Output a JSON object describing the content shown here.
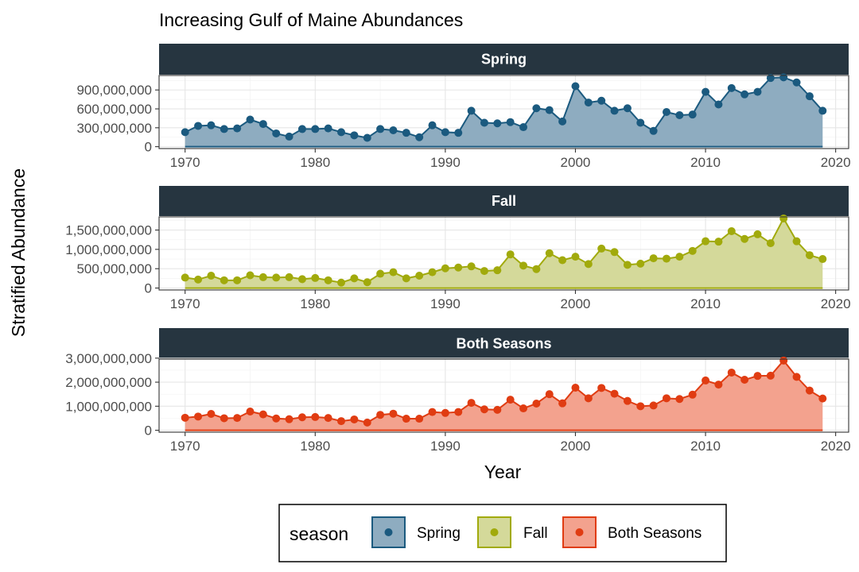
{
  "chart_data": {
    "type": "area",
    "title": "Increasing Gulf of Maine Abundances",
    "xlabel": "Year",
    "ylabel": "Stratified Abundance",
    "x_ticks": [
      1970,
      1980,
      1990,
      2000,
      2010,
      2020
    ],
    "xlim": [
      1968,
      2021
    ],
    "grid": true,
    "legend": {
      "title": "season",
      "placement": "bottom",
      "entries": [
        "Spring",
        "Fall",
        "Both Seasons"
      ]
    },
    "x": [
      1970,
      1971,
      1972,
      1973,
      1974,
      1975,
      1976,
      1977,
      1978,
      1979,
      1980,
      1981,
      1982,
      1983,
      1984,
      1985,
      1986,
      1987,
      1988,
      1989,
      1990,
      1991,
      1992,
      1993,
      1994,
      1995,
      1996,
      1997,
      1998,
      1999,
      2000,
      2001,
      2002,
      2003,
      2004,
      2005,
      2006,
      2007,
      2008,
      2009,
      2010,
      2011,
      2012,
      2013,
      2014,
      2015,
      2016,
      2017,
      2018,
      2019
    ],
    "panels": [
      {
        "name": "Spring",
        "color": "#1B5A7F",
        "fill": "#8EACC0",
        "ylim": [
          -30000000,
          1130000000
        ],
        "y_ticks": [
          0,
          300000000,
          600000000,
          900000000
        ],
        "y_tick_labels": [
          "0",
          "300,000,000",
          "600,000,000",
          "900,000,000"
        ],
        "values": [
          230000000,
          330000000,
          340000000,
          280000000,
          290000000,
          430000000,
          360000000,
          210000000,
          160000000,
          280000000,
          280000000,
          290000000,
          230000000,
          180000000,
          140000000,
          280000000,
          260000000,
          220000000,
          150000000,
          340000000,
          230000000,
          220000000,
          570000000,
          380000000,
          370000000,
          390000000,
          310000000,
          610000000,
          580000000,
          400000000,
          960000000,
          700000000,
          730000000,
          570000000,
          610000000,
          380000000,
          250000000,
          550000000,
          500000000,
          510000000,
          870000000,
          670000000,
          930000000,
          830000000,
          870000000,
          1090000000,
          1100000000,
          1020000000,
          800000000,
          570000000
        ]
      },
      {
        "name": "Fall",
        "color": "#A1AA0C",
        "fill": "#D4D99A",
        "ylim": [
          -50000000,
          1840000000
        ],
        "y_ticks": [
          0,
          500000000,
          1000000000,
          1500000000
        ],
        "y_tick_labels": [
          "0",
          "500,000,000",
          "1,000,000,000",
          "1,500,000,000"
        ],
        "values": [
          270000000,
          220000000,
          320000000,
          200000000,
          200000000,
          330000000,
          280000000,
          270000000,
          280000000,
          230000000,
          260000000,
          200000000,
          140000000,
          250000000,
          150000000,
          370000000,
          410000000,
          250000000,
          320000000,
          410000000,
          510000000,
          530000000,
          560000000,
          440000000,
          460000000,
          870000000,
          580000000,
          490000000,
          900000000,
          720000000,
          810000000,
          620000000,
          1020000000,
          930000000,
          600000000,
          630000000,
          770000000,
          760000000,
          810000000,
          960000000,
          1210000000,
          1200000000,
          1470000000,
          1270000000,
          1390000000,
          1160000000,
          1800000000,
          1210000000,
          850000000,
          750000000
        ]
      },
      {
        "name": "Both Seasons",
        "color": "#E03C12",
        "fill": "#F3A28E",
        "ylim": [
          -80000000,
          2960000000
        ],
        "y_ticks": [
          0,
          1000000000,
          2000000000,
          3000000000
        ],
        "y_tick_labels": [
          "0",
          "1,000,000,000",
          "2,000,000,000",
          "3,000,000,000"
        ],
        "values": [
          520000000,
          570000000,
          680000000,
          500000000,
          510000000,
          780000000,
          660000000,
          490000000,
          460000000,
          540000000,
          550000000,
          510000000,
          380000000,
          450000000,
          320000000,
          640000000,
          690000000,
          480000000,
          480000000,
          760000000,
          720000000,
          760000000,
          1140000000,
          870000000,
          850000000,
          1270000000,
          910000000,
          1110000000,
          1500000000,
          1120000000,
          1770000000,
          1330000000,
          1760000000,
          1520000000,
          1220000000,
          1000000000,
          1030000000,
          1330000000,
          1300000000,
          1480000000,
          2070000000,
          1900000000,
          2400000000,
          2100000000,
          2260000000,
          2270000000,
          2900000000,
          2220000000,
          1650000000,
          1320000000
        ]
      }
    ]
  }
}
